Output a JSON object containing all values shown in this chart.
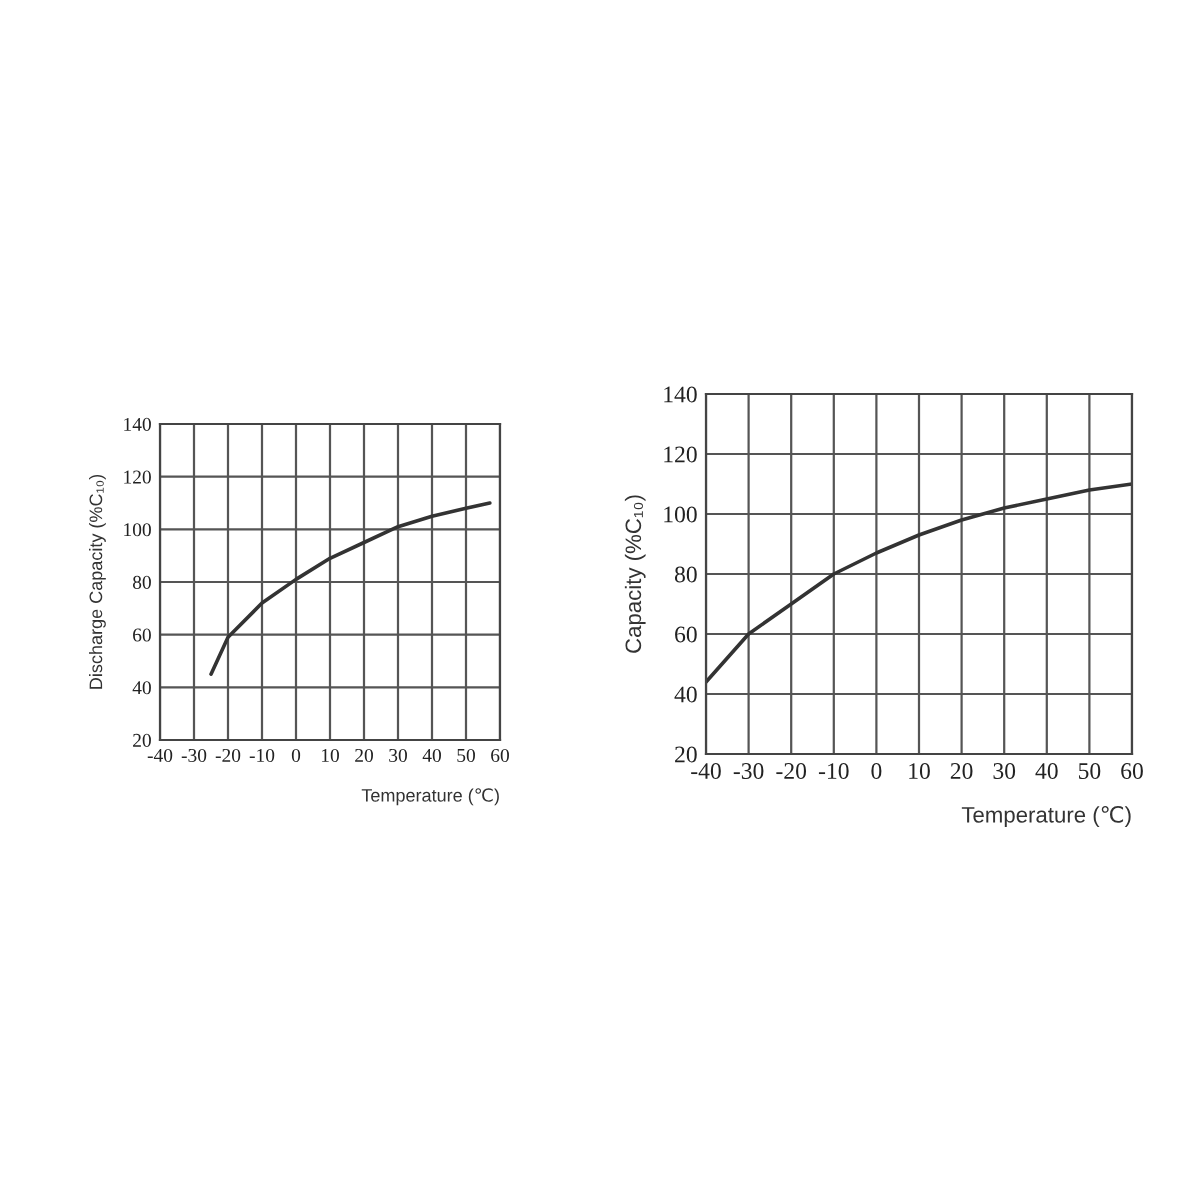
{
  "chart_data": [
    {
      "type": "line",
      "xlabel": "Temperature (℃)",
      "ylabel": "Discharge Capacity (%C₁₀)",
      "x": [
        -25,
        -20,
        -10,
        0,
        10,
        20,
        30,
        40,
        50,
        57
      ],
      "series": [
        {
          "color": "#333333",
          "values": [
            45,
            59,
            72,
            81,
            89,
            95,
            101,
            105,
            108,
            110
          ]
        }
      ],
      "xlim": [
        -40,
        60
      ],
      "ylim": [
        20,
        140
      ],
      "xticks": [
        -40,
        -30,
        -20,
        -10,
        0,
        10,
        20,
        30,
        40,
        50,
        60
      ],
      "yticks": [
        20,
        40,
        60,
        80,
        100,
        120,
        140
      ],
      "grid": true
    },
    {
      "type": "line",
      "xlabel": "Temperature (℃)",
      "ylabel": "Capacity (%C₁₀)",
      "x": [
        -40,
        -30,
        -20,
        -10,
        0,
        10,
        20,
        30,
        40,
        50,
        60
      ],
      "series": [
        {
          "color": "#333333",
          "values": [
            44,
            60,
            70,
            80,
            87,
            93,
            98,
            102,
            105,
            108,
            110
          ]
        }
      ],
      "xlim": [
        -40,
        60
      ],
      "ylim": [
        20,
        140
      ],
      "xticks": [
        -40,
        -30,
        -20,
        -10,
        0,
        10,
        20,
        30,
        40,
        50,
        60
      ],
      "yticks": [
        20,
        40,
        60,
        80,
        100,
        120,
        140
      ],
      "grid": true
    }
  ]
}
